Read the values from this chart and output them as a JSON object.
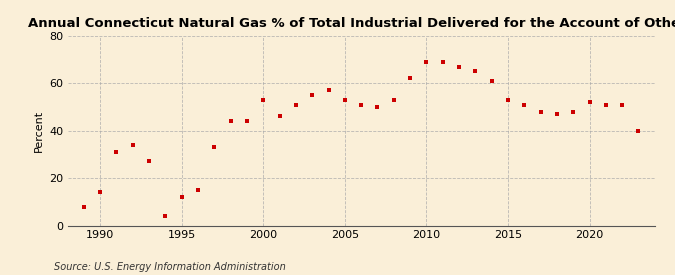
{
  "title": "Annual Connecticut Natural Gas % of Total Industrial Delivered for the Account of Others",
  "ylabel": "Percent",
  "source": "Source: U.S. Energy Information Administration",
  "background_color": "#faefd8",
  "plot_bg_color": "#faefd8",
  "marker_color": "#cc0000",
  "years": [
    1989,
    1990,
    1991,
    1992,
    1993,
    1994,
    1995,
    1996,
    1997,
    1998,
    1999,
    2000,
    2001,
    2002,
    2003,
    2004,
    2005,
    2006,
    2007,
    2008,
    2009,
    2010,
    2011,
    2012,
    2013,
    2014,
    2015,
    2016,
    2017,
    2018,
    2019,
    2020,
    2021,
    2022,
    2023
  ],
  "values": [
    8,
    14,
    31,
    34,
    27,
    4,
    12,
    15,
    33,
    44,
    44,
    53,
    46,
    51,
    55,
    57,
    53,
    51,
    50,
    53,
    62,
    69,
    69,
    67,
    65,
    61,
    53,
    51,
    48,
    47,
    48,
    52,
    51,
    51,
    40
  ],
  "ylim": [
    0,
    80
  ],
  "yticks": [
    0,
    20,
    40,
    60,
    80
  ],
  "xlim": [
    1988.0,
    2024.0
  ],
  "xticks": [
    1990,
    1995,
    2000,
    2005,
    2010,
    2015,
    2020
  ],
  "title_fontsize": 9.5,
  "tick_fontsize": 8,
  "ylabel_fontsize": 8,
  "source_fontsize": 7,
  "grid_color": "#aaaaaa",
  "spine_color": "#555555"
}
